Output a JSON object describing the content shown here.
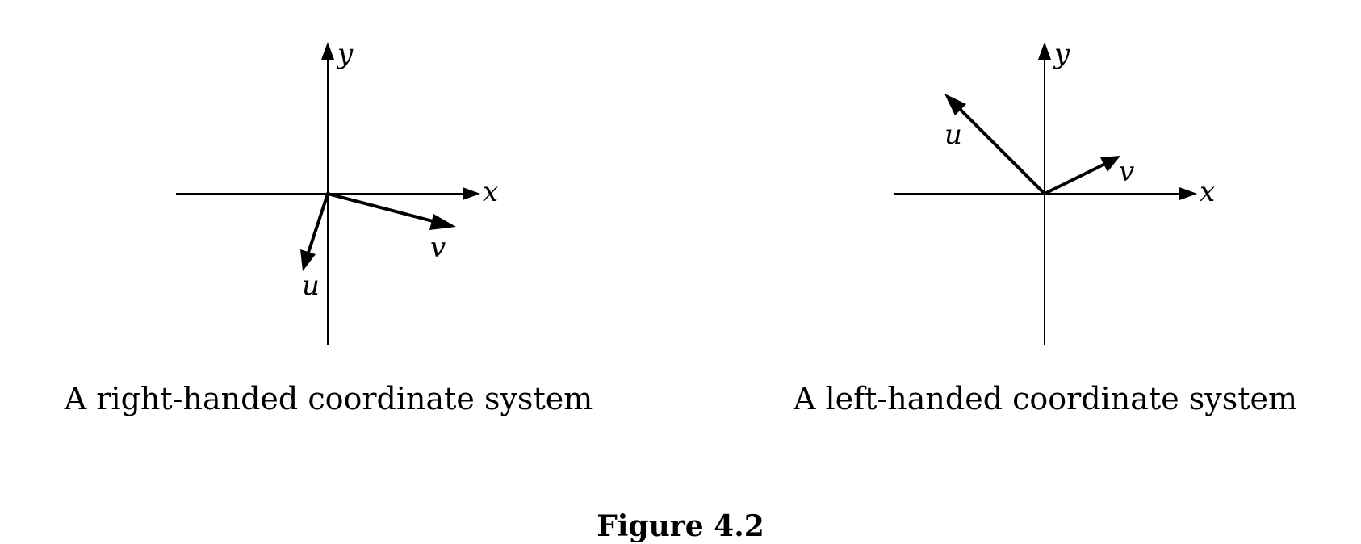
{
  "diagrams": [
    {
      "caption": "A right-handed coordinate system",
      "x_label": "x",
      "y_label": "y",
      "u_label": "u",
      "v_label": "v"
    },
    {
      "caption": "A left-handed coordinate system",
      "x_label": "x",
      "y_label": "y",
      "u_label": "u",
      "v_label": "v"
    }
  ],
  "figure_title": "Figure 4.2"
}
